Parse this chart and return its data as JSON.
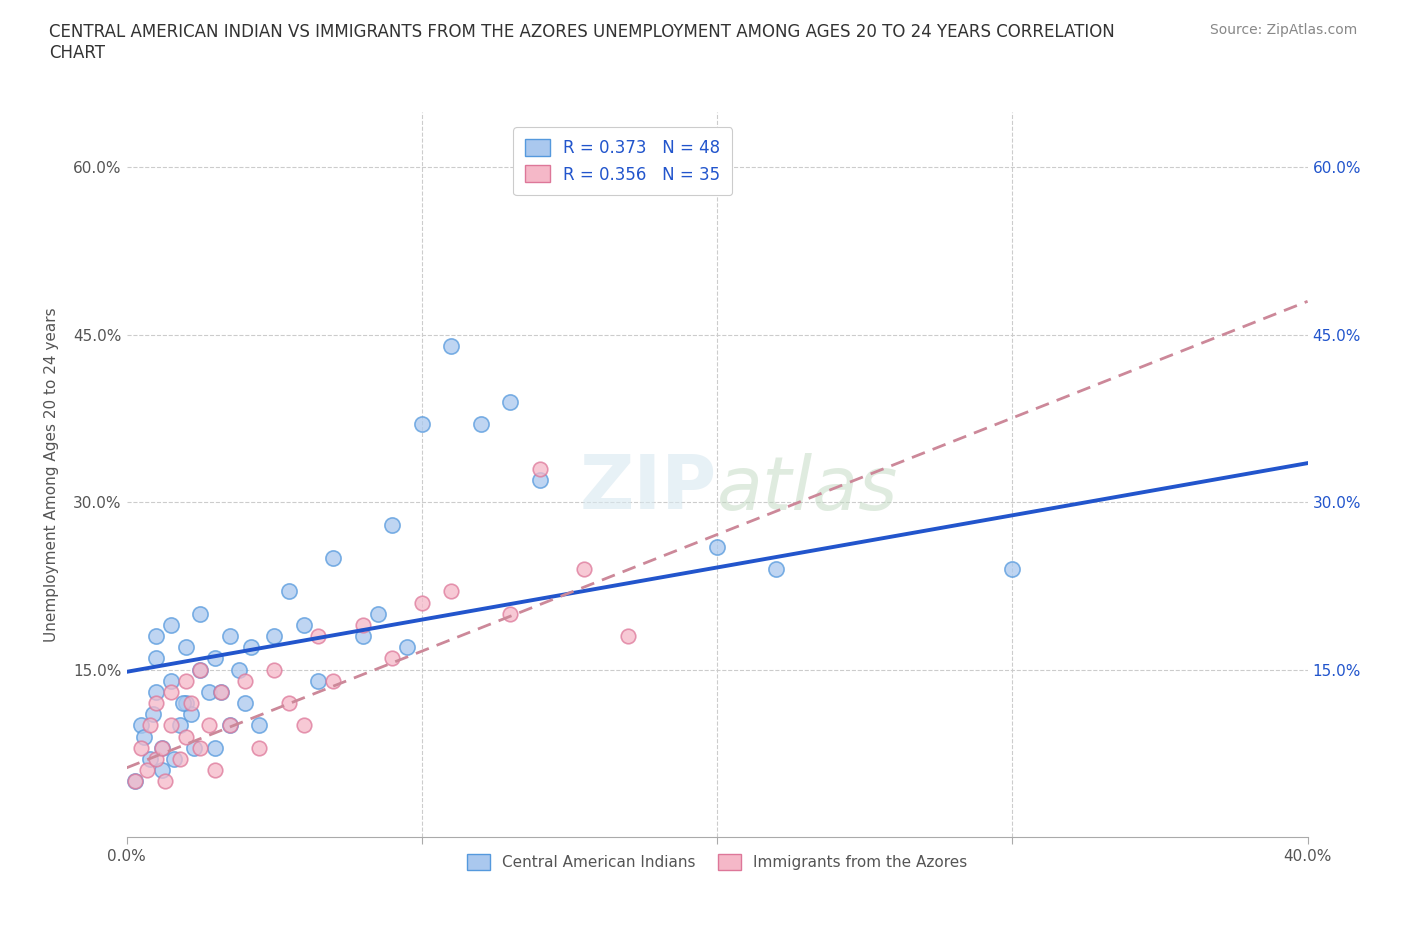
{
  "title": "CENTRAL AMERICAN INDIAN VS IMMIGRANTS FROM THE AZORES UNEMPLOYMENT AMONG AGES 20 TO 24 YEARS CORRELATION\nCHART",
  "source": "Source: ZipAtlas.com",
  "ylabel": "Unemployment Among Ages 20 to 24 years",
  "xlim": [
    0.0,
    0.4
  ],
  "ylim": [
    0.0,
    0.65
  ],
  "xticks": [
    0.0,
    0.1,
    0.2,
    0.3,
    0.4
  ],
  "yticks": [
    0.0,
    0.15,
    0.3,
    0.45,
    0.6
  ],
  "grid_color": "#cccccc",
  "background_color": "#ffffff",
  "blue_fill": "#aac8ee",
  "blue_edge": "#5599dd",
  "pink_fill": "#f5b8c8",
  "pink_edge": "#dd7799",
  "blue_line_color": "#2255cc",
  "pink_line_color": "#cc8899",
  "watermark": "ZIPatlas",
  "legend_label_blue": "Central American Indians",
  "legend_label_pink": "Immigrants from the Azores",
  "blue_x": [
    0.005,
    0.008,
    0.01,
    0.01,
    0.01,
    0.012,
    0.015,
    0.015,
    0.018,
    0.02,
    0.02,
    0.022,
    0.025,
    0.025,
    0.028,
    0.03,
    0.03,
    0.032,
    0.035,
    0.038,
    0.04,
    0.042,
    0.045,
    0.05,
    0.055,
    0.06,
    0.065,
    0.07,
    0.08,
    0.085,
    0.09,
    0.095,
    0.1,
    0.11,
    0.12,
    0.13,
    0.14,
    0.2,
    0.22,
    0.3,
    0.003,
    0.006,
    0.009,
    0.012,
    0.016,
    0.019,
    0.023,
    0.035
  ],
  "blue_y": [
    0.1,
    0.07,
    0.13,
    0.16,
    0.18,
    0.08,
    0.14,
    0.19,
    0.1,
    0.12,
    0.17,
    0.11,
    0.15,
    0.2,
    0.13,
    0.08,
    0.16,
    0.13,
    0.18,
    0.15,
    0.12,
    0.17,
    0.1,
    0.18,
    0.22,
    0.19,
    0.14,
    0.25,
    0.18,
    0.2,
    0.28,
    0.17,
    0.37,
    0.44,
    0.37,
    0.39,
    0.32,
    0.26,
    0.24,
    0.24,
    0.05,
    0.09,
    0.11,
    0.06,
    0.07,
    0.12,
    0.08,
    0.1
  ],
  "pink_x": [
    0.003,
    0.005,
    0.007,
    0.008,
    0.01,
    0.01,
    0.012,
    0.013,
    0.015,
    0.015,
    0.018,
    0.02,
    0.02,
    0.022,
    0.025,
    0.025,
    0.028,
    0.03,
    0.032,
    0.035,
    0.04,
    0.045,
    0.05,
    0.055,
    0.06,
    0.065,
    0.07,
    0.08,
    0.09,
    0.1,
    0.11,
    0.13,
    0.14,
    0.155,
    0.17
  ],
  "pink_y": [
    0.05,
    0.08,
    0.06,
    0.1,
    0.07,
    0.12,
    0.08,
    0.05,
    0.1,
    0.13,
    0.07,
    0.09,
    0.14,
    0.12,
    0.08,
    0.15,
    0.1,
    0.06,
    0.13,
    0.1,
    0.14,
    0.08,
    0.15,
    0.12,
    0.1,
    0.18,
    0.14,
    0.19,
    0.16,
    0.21,
    0.22,
    0.2,
    0.33,
    0.24,
    0.18
  ],
  "blue_line_x0": 0.0,
  "blue_line_y0": 0.148,
  "blue_line_x1": 0.4,
  "blue_line_y1": 0.335,
  "pink_line_x0": 0.0,
  "pink_line_y0": 0.062,
  "pink_line_x1": 0.4,
  "pink_line_y1": 0.48
}
